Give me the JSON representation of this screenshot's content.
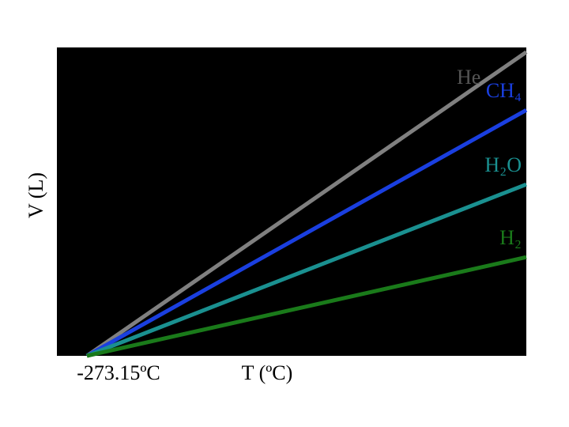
{
  "chart_data": {
    "type": "line",
    "xlabel": "T (ºC)",
    "ylabel": "V (L)",
    "x": [
      -273.15,
      100
    ],
    "xlim": [
      -298.65,
      100
    ],
    "xticks": [
      {
        "value": -273.15,
        "label": "-273.15ºC"
      }
    ],
    "ylim": [
      0,
      100
    ],
    "series": [
      {
        "name": "He",
        "color": "#808080",
        "values": [
          0,
          98.5
        ]
      },
      {
        "name": "CH₄",
        "color": "#1a3fe0",
        "values": [
          0,
          79.7
        ]
      },
      {
        "name": "H₂O",
        "color": "#1a9090",
        "values": [
          0,
          55.6
        ]
      },
      {
        "name": "H₂",
        "color": "#1a7a1a",
        "values": [
          0,
          32
        ]
      }
    ]
  }
}
